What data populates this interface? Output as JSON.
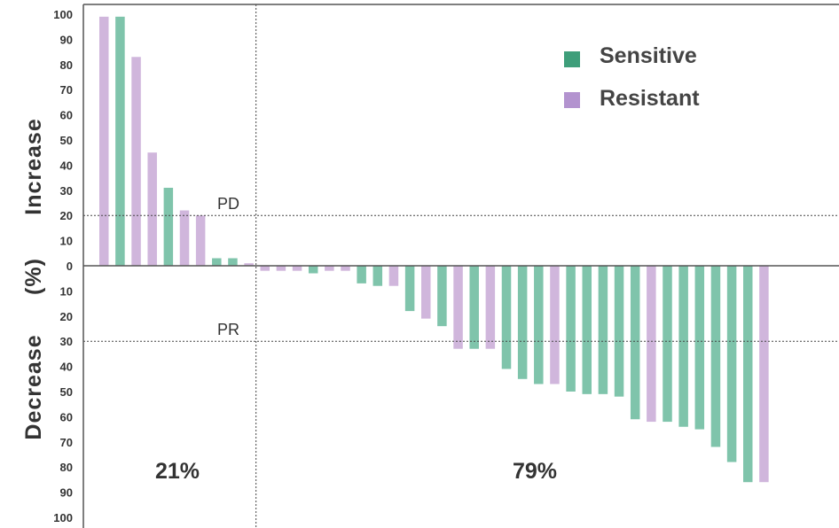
{
  "chart_data": {
    "type": "bar",
    "ylabel_upper": "Increase",
    "ylabel_units": "(%)",
    "ylabel_lower": "Decrease",
    "ylim": [
      -100,
      100
    ],
    "yticks": [
      "100",
      "90",
      "80",
      "70",
      "60",
      "50",
      "40",
      "30",
      "20",
      "10",
      "0",
      "10",
      "20",
      "30",
      "40",
      "50",
      "60",
      "70",
      "80",
      "90",
      "100"
    ],
    "series": [
      {
        "name": "Sensitive",
        "color": "#7fc4ab",
        "legend_color": "#3e9e7a"
      },
      {
        "name": "Resistant",
        "color": "#d0b6dc",
        "legend_color": "#b393cf"
      }
    ],
    "bars": [
      {
        "value": 99,
        "group": 1
      },
      {
        "value": 99,
        "group": 0
      },
      {
        "value": 83,
        "group": 1
      },
      {
        "value": 45,
        "group": 1
      },
      {
        "value": 31,
        "group": 0
      },
      {
        "value": 22,
        "group": 1
      },
      {
        "value": 20,
        "group": 1
      },
      {
        "value": 3,
        "group": 0
      },
      {
        "value": 3,
        "group": 0
      },
      {
        "value": 1,
        "group": 1
      },
      {
        "value": -2,
        "group": 1
      },
      {
        "value": -2,
        "group": 1
      },
      {
        "value": -2,
        "group": 1
      },
      {
        "value": -3,
        "group": 0
      },
      {
        "value": -2,
        "group": 1
      },
      {
        "value": -2,
        "group": 1
      },
      {
        "value": -7,
        "group": 0
      },
      {
        "value": -8,
        "group": 0
      },
      {
        "value": -8,
        "group": 1
      },
      {
        "value": -18,
        "group": 0
      },
      {
        "value": -21,
        "group": 1
      },
      {
        "value": -24,
        "group": 0
      },
      {
        "value": -33,
        "group": 1
      },
      {
        "value": -33,
        "group": 0
      },
      {
        "value": -33,
        "group": 1
      },
      {
        "value": -41,
        "group": 0
      },
      {
        "value": -45,
        "group": 0
      },
      {
        "value": -47,
        "group": 0
      },
      {
        "value": -47,
        "group": 1
      },
      {
        "value": -50,
        "group": 0
      },
      {
        "value": -51,
        "group": 0
      },
      {
        "value": -51,
        "group": 0
      },
      {
        "value": -52,
        "group": 0
      },
      {
        "value": -61,
        "group": 0
      },
      {
        "value": -62,
        "group": 1
      },
      {
        "value": -62,
        "group": 0
      },
      {
        "value": -64,
        "group": 0
      },
      {
        "value": -65,
        "group": 0
      },
      {
        "value": -72,
        "group": 0
      },
      {
        "value": -78,
        "group": 0
      },
      {
        "value": -86,
        "group": 0
      },
      {
        "value": -86,
        "group": 1
      }
    ],
    "reference_lines": [
      {
        "label": "PD",
        "value": 20
      },
      {
        "label": "PR",
        "value": -30
      }
    ],
    "divider_after_bar": 10,
    "annotations": [
      "21%",
      "79%"
    ],
    "legend_position": "top-right",
    "grid": false
  }
}
